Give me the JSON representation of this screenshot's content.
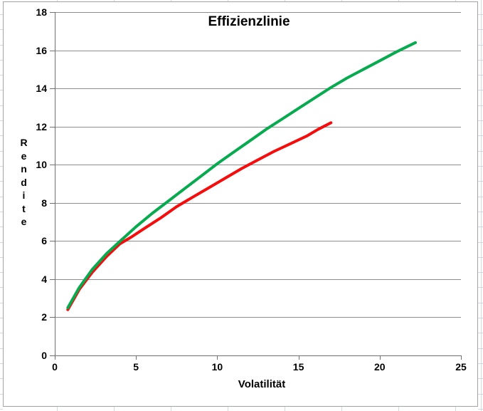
{
  "chart_data": {
    "type": "line",
    "title": "Effizienzlinie",
    "xlabel": "Volatilität",
    "ylabel": "Rendite",
    "xlim": [
      0,
      25
    ],
    "ylim": [
      0,
      18
    ],
    "xticks": [
      0,
      5,
      10,
      15,
      20,
      25
    ],
    "yticks": [
      0,
      2,
      4,
      6,
      8,
      10,
      12,
      14,
      16,
      18
    ],
    "grid": "horizontal-only",
    "legend_position": "none",
    "series": [
      {
        "name": "red-line",
        "color": "#f50c0c",
        "points": [
          [
            0.8,
            2.4
          ],
          [
            1.5,
            3.45
          ],
          [
            2.3,
            4.35
          ],
          [
            3.2,
            5.2
          ],
          [
            4.0,
            5.85
          ],
          [
            4.7,
            6.2
          ],
          [
            5.5,
            6.65
          ],
          [
            6.5,
            7.2
          ],
          [
            7.5,
            7.8
          ],
          [
            8.5,
            8.3
          ],
          [
            9.5,
            8.8
          ],
          [
            10.5,
            9.3
          ],
          [
            11.5,
            9.8
          ],
          [
            12.5,
            10.25
          ],
          [
            13.5,
            10.7
          ],
          [
            14.5,
            11.1
          ],
          [
            15.5,
            11.5
          ],
          [
            16.2,
            11.85
          ],
          [
            17.0,
            12.2
          ]
        ]
      },
      {
        "name": "green-line",
        "color": "#07aa4e",
        "points": [
          [
            0.8,
            2.5
          ],
          [
            1.5,
            3.55
          ],
          [
            2.3,
            4.5
          ],
          [
            3.2,
            5.35
          ],
          [
            4.1,
            6.05
          ],
          [
            5.0,
            6.75
          ],
          [
            6.0,
            7.45
          ],
          [
            7.0,
            8.1
          ],
          [
            8.0,
            8.75
          ],
          [
            9.0,
            9.4
          ],
          [
            10.0,
            10.05
          ],
          [
            11.0,
            10.65
          ],
          [
            12.0,
            11.25
          ],
          [
            13.0,
            11.85
          ],
          [
            14.0,
            12.4
          ],
          [
            15.0,
            12.95
          ],
          [
            16.0,
            13.5
          ],
          [
            17.0,
            14.05
          ],
          [
            18.0,
            14.55
          ],
          [
            19.0,
            15.0
          ],
          [
            20.0,
            15.45
          ],
          [
            21.0,
            15.9
          ],
          [
            22.2,
            16.4
          ]
        ]
      }
    ],
    "colors": {
      "gridline": "#8d8d8d",
      "axis": "#717171",
      "label_text": "#000000",
      "chart_border": "#a3a3a3",
      "sheet_gridline": "#d3d9e2",
      "background": "#ffffff"
    }
  }
}
